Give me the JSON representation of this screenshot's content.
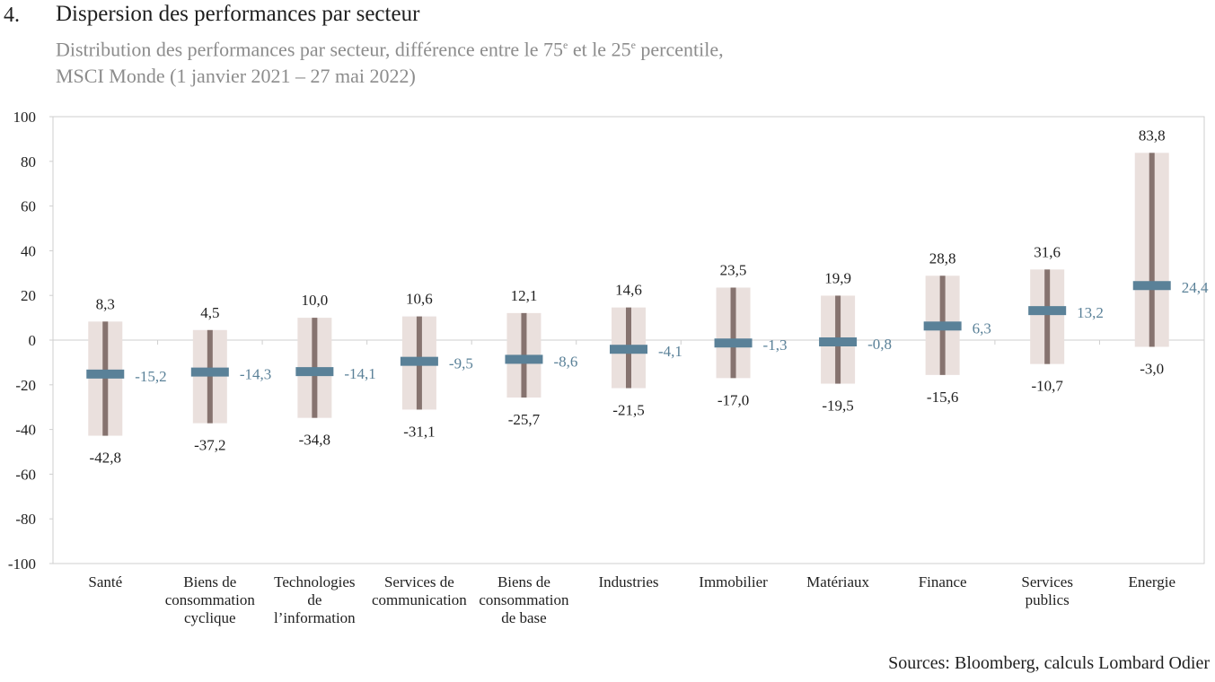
{
  "header": {
    "number": "4.",
    "title": "Dispersion des performances par secteur",
    "subtitle_line1_a": "Distribution des performances par secteur, différence entre le 75",
    "sup1": "e",
    "subtitle_line1_b": " et le 25",
    "sup2": "e",
    "subtitle_line1_c": " percentile,",
    "subtitle_line2": "MSCI Monde (1 janvier 2021 – 27 mai 2022)"
  },
  "source": "Sources: Bloomberg, calculs Lombard Odier",
  "chart_data": {
    "type": "range",
    "ylim": [
      -100,
      100
    ],
    "yticks": [
      100,
      80,
      60,
      40,
      20,
      0,
      -20,
      -40,
      -60,
      -80,
      -100
    ],
    "categories": [
      [
        "Santé"
      ],
      [
        "Biens de",
        "consommation",
        "cyclique"
      ],
      [
        "Technologies",
        "de",
        "l’information"
      ],
      [
        "Services de",
        "communication"
      ],
      [
        "Biens de",
        "consommation",
        "de base"
      ],
      [
        "Industries"
      ],
      [
        "Immobilier"
      ],
      [
        "Matériaux"
      ],
      [
        "Finance"
      ],
      [
        "Services",
        "publics"
      ],
      [
        "Energie"
      ]
    ],
    "high": [
      8.3,
      4.5,
      10.0,
      10.6,
      12.1,
      14.6,
      23.5,
      19.9,
      28.8,
      31.6,
      83.8
    ],
    "low": [
      -42.8,
      -37.2,
      -34.8,
      -31.1,
      -25.7,
      -21.5,
      -17.0,
      -19.5,
      -15.6,
      -10.7,
      -3.0
    ],
    "median": [
      -15.2,
      -14.3,
      -14.1,
      -9.5,
      -8.6,
      -4.1,
      -1.3,
      -0.8,
      6.3,
      13.2,
      24.4
    ],
    "high_labels": [
      "8,3",
      "4,5",
      "10,0",
      "10,6",
      "12,1",
      "14,6",
      "23,5",
      "19,9",
      "28,8",
      "31,6",
      "83,8"
    ],
    "low_labels": [
      "-42,8",
      "-37,2",
      "-34,8",
      "-31,1",
      "-25,7",
      "-21,5",
      "-17,0",
      "-19,5",
      "-15,6",
      "-10,7",
      "-3,0"
    ],
    "median_labels": [
      "-15,2",
      "-14,3",
      "-14,1",
      "-9,5",
      "-8,6",
      "-4,1",
      "-1,3",
      "-0,8",
      "6,3",
      "13,2",
      "24,4"
    ],
    "colors": {
      "box": "#eae0dd",
      "range_line": "#86736f",
      "median": "#5a8198",
      "median_label": "#5a8198",
      "frame": "#cfcfcf",
      "text": "#1f1f1f"
    },
    "grid": false
  }
}
